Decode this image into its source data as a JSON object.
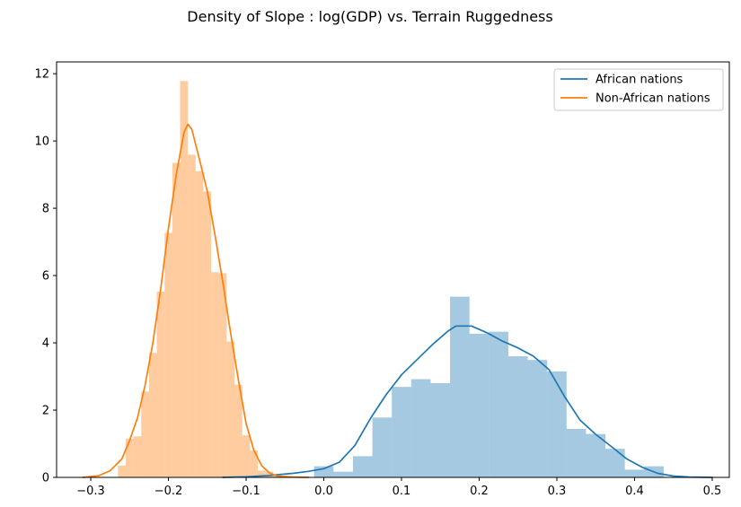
{
  "chart_data": {
    "type": "bar",
    "title": "Density of Slope : log(GDP) vs. Terrain Ruggedness",
    "xlabel": "",
    "ylabel": "",
    "xlim": [
      -0.344,
      0.522
    ],
    "ylim": [
      0,
      12.35
    ],
    "x_ticks": [
      -0.3,
      -0.2,
      -0.1,
      0.0,
      0.1,
      0.2,
      0.3,
      0.4,
      0.5
    ],
    "x_tick_labels": [
      "−0.3",
      "−0.2",
      "−0.1",
      "0.0",
      "0.1",
      "0.2",
      "0.3",
      "0.4",
      "0.5"
    ],
    "y_ticks": [
      0,
      2,
      4,
      6,
      8,
      10,
      12
    ],
    "y_tick_labels": [
      "0",
      "2",
      "4",
      "6",
      "8",
      "10",
      "12"
    ],
    "grid": false,
    "legend_position": "top-right",
    "series": [
      {
        "name": "African nations",
        "line_color": "#1f77b4",
        "bar_color": "#1f77b4",
        "bar_opacity": 0.4,
        "hist_bins": [
          {
            "x0": -0.0125,
            "x1": 0.0125,
            "value": 0.33
          },
          {
            "x0": 0.0125,
            "x1": 0.0375,
            "value": 0.17
          },
          {
            "x0": 0.0375,
            "x1": 0.0625,
            "value": 0.63
          },
          {
            "x0": 0.0625,
            "x1": 0.0875,
            "value": 1.78
          },
          {
            "x0": 0.0875,
            "x1": 0.1125,
            "value": 2.69
          },
          {
            "x0": 0.1125,
            "x1": 0.1375,
            "value": 2.92
          },
          {
            "x0": 0.1375,
            "x1": 0.1625,
            "value": 2.8
          },
          {
            "x0": 0.1625,
            "x1": 0.1875,
            "value": 5.37
          },
          {
            "x0": 0.1875,
            "x1": 0.2125,
            "value": 4.27
          },
          {
            "x0": 0.2125,
            "x1": 0.2375,
            "value": 4.33
          },
          {
            "x0": 0.2375,
            "x1": 0.2625,
            "value": 3.6
          },
          {
            "x0": 0.2625,
            "x1": 0.2875,
            "value": 3.49
          },
          {
            "x0": 0.2875,
            "x1": 0.3125,
            "value": 3.15
          },
          {
            "x0": 0.3125,
            "x1": 0.3375,
            "value": 1.44
          },
          {
            "x0": 0.3375,
            "x1": 0.3625,
            "value": 1.29
          },
          {
            "x0": 0.3625,
            "x1": 0.3875,
            "value": 0.85
          },
          {
            "x0": 0.3875,
            "x1": 0.4125,
            "value": 0.23
          },
          {
            "x0": 0.4125,
            "x1": 0.4375,
            "value": 0.33
          }
        ],
        "kde": {
          "x": [
            -0.13,
            -0.1,
            -0.07,
            -0.04,
            -0.02,
            0.0,
            0.02,
            0.04,
            0.06,
            0.08,
            0.1,
            0.12,
            0.14,
            0.16,
            0.17,
            0.19,
            0.21,
            0.23,
            0.25,
            0.27,
            0.29,
            0.31,
            0.33,
            0.35,
            0.37,
            0.39,
            0.41,
            0.43,
            0.45,
            0.47,
            0.5
          ],
          "y": [
            0.0,
            0.02,
            0.06,
            0.12,
            0.18,
            0.26,
            0.45,
            0.95,
            1.75,
            2.45,
            3.05,
            3.5,
            3.95,
            4.35,
            4.5,
            4.5,
            4.3,
            4.05,
            3.85,
            3.6,
            3.2,
            2.4,
            1.7,
            1.28,
            0.92,
            0.55,
            0.3,
            0.12,
            0.04,
            0.01,
            0.0
          ]
        }
      },
      {
        "name": "Non-African nations",
        "line_color": "#ff7f0e",
        "bar_color": "#ff7f0e",
        "bar_opacity": 0.4,
        "hist_bins": [
          {
            "x0": -0.265,
            "x1": -0.255,
            "value": 0.35
          },
          {
            "x0": -0.255,
            "x1": -0.245,
            "value": 1.15
          },
          {
            "x0": -0.245,
            "x1": -0.235,
            "value": 1.22
          },
          {
            "x0": -0.235,
            "x1": -0.225,
            "value": 2.55
          },
          {
            "x0": -0.225,
            "x1": -0.215,
            "value": 3.7
          },
          {
            "x0": -0.215,
            "x1": -0.205,
            "value": 5.52
          },
          {
            "x0": -0.205,
            "x1": -0.195,
            "value": 7.27
          },
          {
            "x0": -0.195,
            "x1": -0.185,
            "value": 9.35
          },
          {
            "x0": -0.185,
            "x1": -0.175,
            "value": 11.78
          },
          {
            "x0": -0.175,
            "x1": -0.165,
            "value": 9.59
          },
          {
            "x0": -0.165,
            "x1": -0.155,
            "value": 9.1
          },
          {
            "x0": -0.155,
            "x1": -0.145,
            "value": 8.5
          },
          {
            "x0": -0.145,
            "x1": -0.135,
            "value": 6.1
          },
          {
            "x0": -0.135,
            "x1": -0.125,
            "value": 6.07
          },
          {
            "x0": -0.125,
            "x1": -0.115,
            "value": 4.04
          },
          {
            "x0": -0.115,
            "x1": -0.105,
            "value": 2.75
          },
          {
            "x0": -0.105,
            "x1": -0.095,
            "value": 1.25
          },
          {
            "x0": -0.095,
            "x1": -0.085,
            "value": 0.8
          },
          {
            "x0": -0.085,
            "x1": -0.075,
            "value": 0.2
          },
          {
            "x0": -0.075,
            "x1": -0.065,
            "value": 0.17
          },
          {
            "x0": -0.065,
            "x1": -0.055,
            "value": 0.08
          }
        ],
        "kde": {
          "x": [
            -0.31,
            -0.29,
            -0.275,
            -0.26,
            -0.25,
            -0.24,
            -0.23,
            -0.22,
            -0.21,
            -0.2,
            -0.19,
            -0.18,
            -0.175,
            -0.17,
            -0.16,
            -0.15,
            -0.14,
            -0.13,
            -0.12,
            -0.11,
            -0.1,
            -0.09,
            -0.08,
            -0.07,
            -0.06,
            -0.04,
            -0.02
          ],
          "y": [
            0.0,
            0.05,
            0.2,
            0.55,
            1.1,
            1.75,
            2.75,
            4.0,
            5.6,
            7.4,
            9.0,
            10.25,
            10.5,
            10.35,
            9.45,
            8.5,
            7.2,
            5.8,
            4.3,
            2.9,
            1.6,
            0.8,
            0.35,
            0.13,
            0.04,
            0.01,
            0.0
          ]
        }
      }
    ]
  }
}
